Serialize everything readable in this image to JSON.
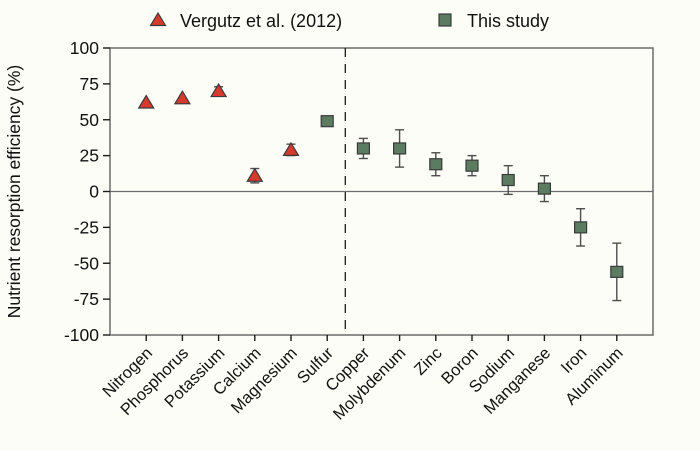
{
  "figure": {
    "background_color": "#fdfdf8",
    "axis_color": "#6b6b6b",
    "text_color": "#111111",
    "error_bar_color": "#4d4d4d",
    "marker_outline_color": "#3a3a3a",
    "divider_color": "#1a1a1a"
  },
  "legend": {
    "position": "top",
    "items": [
      {
        "label": "Vergutz et al. (2012)",
        "marker": "triangle-icon",
        "color": "#d63a2c"
      },
      {
        "label": "This study",
        "marker": "square-icon",
        "color": "#5b7c60"
      }
    ]
  },
  "chart_data": {
    "type": "scatter",
    "title": "",
    "xlabel": "",
    "ylabel": "Nutrient resorption efficiency (%)",
    "ylim": [
      -100,
      100
    ],
    "yticks": [
      100,
      75,
      50,
      25,
      0,
      -25,
      -50,
      -75,
      -100
    ],
    "grid": false,
    "zero_reference_line": 0,
    "divider_between": [
      "Sulfur",
      "Copper"
    ],
    "divider_style": "dashed",
    "categories": [
      "Nitrogen",
      "Phosphorus",
      "Potassium",
      "Calcium",
      "Magnesium",
      "Sulfur",
      "Copper",
      "Molybdenum",
      "Zinc",
      "Boron",
      "Sodium",
      "Manganese",
      "Iron",
      "Aluminum"
    ],
    "series": [
      {
        "name": "Vergutz et al. (2012)",
        "marker": "triangle",
        "color": "#d63a2c",
        "points": [
          {
            "category": "Nitrogen",
            "value": 62,
            "error": 0
          },
          {
            "category": "Phosphorus",
            "value": 65,
            "error": 0
          },
          {
            "category": "Potassium",
            "value": 70,
            "error": 3
          },
          {
            "category": "Calcium",
            "value": 11,
            "error": 5
          },
          {
            "category": "Magnesium",
            "value": 29,
            "error": 4
          }
        ]
      },
      {
        "name": "This study",
        "marker": "square",
        "color": "#5b7c60",
        "points": [
          {
            "category": "Sulfur",
            "value": 49,
            "error": 0
          },
          {
            "category": "Copper",
            "value": 30,
            "error": 7
          },
          {
            "category": "Molybdenum",
            "value": 30,
            "error": 13
          },
          {
            "category": "Zinc",
            "value": 19,
            "error": 8
          },
          {
            "category": "Boron",
            "value": 18,
            "error": 7
          },
          {
            "category": "Sodium",
            "value": 8,
            "error": 10
          },
          {
            "category": "Manganese",
            "value": 2,
            "error": 9
          },
          {
            "category": "Iron",
            "value": -25,
            "error": 13
          },
          {
            "category": "Aluminum",
            "value": -56,
            "error": 20
          }
        ]
      }
    ]
  }
}
